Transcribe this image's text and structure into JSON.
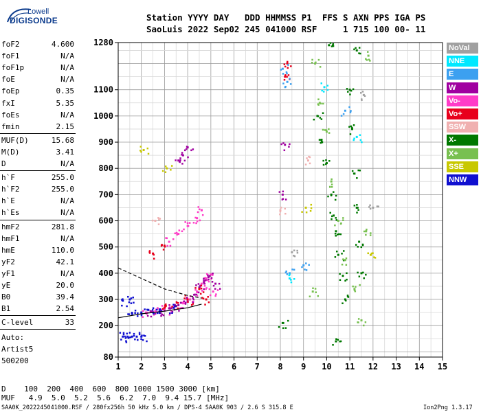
{
  "logo": {
    "line1": "Lowell",
    "line2": "DIGISONDE"
  },
  "header": {
    "row1": "Station YYYY DAY   DDD HHMMSS P1  FFS S AXN PPS IGA PS",
    "row2": "SaoLuis 2022 Sep02 245 041000 RSF     1 715 100 00- 11"
  },
  "params": [
    {
      "label": "foF2",
      "value": "4.600"
    },
    {
      "label": "foF1",
      "value": "N/A"
    },
    {
      "label": "foF1p",
      "value": "N/A"
    },
    {
      "label": "foE",
      "value": "N/A"
    },
    {
      "label": "foEp",
      "value": "0.35"
    },
    {
      "label": "fxI",
      "value": "5.35"
    },
    {
      "label": "foEs",
      "value": "N/A"
    },
    {
      "label": "fmin",
      "value": "2.15"
    },
    {
      "label": "MUF(D)",
      "value": "15.68"
    },
    {
      "label": "M(D)",
      "value": "3.41"
    },
    {
      "label": "D",
      "value": "N/A"
    },
    {
      "label": "h`F",
      "value": "255.0"
    },
    {
      "label": "h`F2",
      "value": "255.0"
    },
    {
      "label": "h`E",
      "value": "N/A"
    },
    {
      "label": "h`Es",
      "value": "N/A"
    },
    {
      "label": "hmF2",
      "value": "281.8"
    },
    {
      "label": "hmF1",
      "value": "N/A"
    },
    {
      "label": "hmE",
      "value": "110.0"
    },
    {
      "label": "yF2",
      "value": "42.1"
    },
    {
      "label": "yF1",
      "value": "N/A"
    },
    {
      "label": "yE",
      "value": "20.0"
    },
    {
      "label": "B0",
      "value": "39.4"
    },
    {
      "label": "B1",
      "value": "2.54"
    },
    {
      "label": "C-level",
      "value": "33"
    }
  ],
  "auto": {
    "line1": "Auto:",
    "line2": "Artist5",
    "line3": "500200"
  },
  "legend": [
    {
      "label": "NoVal",
      "color": "#a0a0a0"
    },
    {
      "label": "NNE",
      "color": "#00e8ff"
    },
    {
      "label": "E",
      "color": "#3ca0f0"
    },
    {
      "label": "W",
      "color": "#a000a0"
    },
    {
      "label": "Vo-",
      "color": "#ff3cc8"
    },
    {
      "label": "Vo+",
      "color": "#e8001c"
    },
    {
      "label": "SSW",
      "color": "#f0b0b0"
    },
    {
      "label": "X-",
      "color": "#007800"
    },
    {
      "label": "X+",
      "color": "#78c050"
    },
    {
      "label": "SSE",
      "color": "#c8c800"
    },
    {
      "label": "NNW",
      "color": "#1010d0"
    }
  ],
  "bottom": {
    "row1": "D    100  200  400  600  800 1000 1500 3000 [km]",
    "row2": "MUF   4.9  5.0  5.2  5.6  6.2  7.0  9.4 15.7 [MHz]"
  },
  "footer": {
    "file": "SAA0K_2022245041000.RSF / 280fx256h 50 kHz 5.0 km / DPS-4 SAA0K 903 / 2.6 S 315.8 E",
    "version": "Ion2Png 1.3.17"
  },
  "chart_data": {
    "type": "scatter",
    "title": "",
    "xlabel": "",
    "ylabel": "",
    "xlim": [
      1,
      15
    ],
    "ylim": [
      80,
      1280
    ],
    "x_ticks": [
      1,
      2,
      3,
      4,
      5,
      6,
      7,
      8,
      9,
      10,
      11,
      12,
      13,
      14,
      15
    ],
    "y_ticks": [
      80,
      200,
      300,
      400,
      500,
      600,
      700,
      800,
      900,
      1000,
      1100,
      1280
    ],
    "grid": true,
    "legend_placement": "right",
    "profile_curve": [
      [
        1.0,
        230
      ],
      [
        2.0,
        245
      ],
      [
        3.0,
        255
      ],
      [
        4.0,
        268
      ],
      [
        4.6,
        282
      ]
    ],
    "extrapolated_curve": [
      [
        1.0,
        420
      ],
      [
        2.0,
        380
      ],
      [
        3.0,
        340
      ],
      [
        4.0,
        315
      ],
      [
        4.6,
        305
      ]
    ],
    "series": [
      {
        "name": "Vo-",
        "points": [
          [
            2.2,
            250
          ],
          [
            2.6,
            255
          ],
          [
            3.0,
            262
          ],
          [
            3.4,
            270
          ],
          [
            3.8,
            285
          ],
          [
            4.1,
            300
          ],
          [
            4.4,
            330
          ],
          [
            4.6,
            360
          ],
          [
            4.8,
            380
          ],
          [
            5.0,
            395
          ],
          [
            5.1,
            330
          ],
          [
            3.2,
            520
          ],
          [
            3.6,
            550
          ],
          [
            4.0,
            580
          ],
          [
            4.4,
            610
          ],
          [
            4.6,
            640
          ]
        ]
      },
      {
        "name": "W",
        "points": [
          [
            2.4,
            255
          ],
          [
            2.8,
            258
          ],
          [
            3.2,
            266
          ],
          [
            3.6,
            278
          ],
          [
            4.0,
            292
          ],
          [
            4.3,
            318
          ],
          [
            4.5,
            345
          ],
          [
            4.7,
            365
          ],
          [
            4.9,
            385
          ],
          [
            5.2,
            360
          ],
          [
            3.8,
            850
          ],
          [
            4.0,
            880
          ],
          [
            3.6,
            830
          ],
          [
            8.1,
            700
          ],
          [
            8.2,
            890
          ]
        ]
      },
      {
        "name": "Vo+",
        "points": [
          [
            3.0,
            268
          ],
          [
            3.5,
            275
          ],
          [
            4.0,
            300
          ],
          [
            4.5,
            340
          ],
          [
            4.8,
            300
          ],
          [
            2.5,
            475
          ],
          [
            3.0,
            505
          ],
          [
            8.2,
            1150
          ],
          [
            8.3,
            1200
          ]
        ]
      },
      {
        "name": "NNW",
        "points": [
          [
            1.6,
            245
          ],
          [
            2.0,
            250
          ],
          [
            2.3,
            260
          ],
          [
            2.8,
            262
          ],
          [
            3.4,
            268
          ],
          [
            1.2,
            158
          ],
          [
            1.4,
            158
          ],
          [
            1.6,
            158
          ],
          [
            1.8,
            158
          ],
          [
            2.0,
            158
          ],
          [
            1.2,
            295
          ],
          [
            1.5,
            300
          ]
        ]
      },
      {
        "name": "X-",
        "points": [
          [
            9.6,
            1000
          ],
          [
            9.8,
            900
          ],
          [
            10.0,
            820
          ],
          [
            10.2,
            700
          ],
          [
            10.3,
            620
          ],
          [
            10.4,
            560
          ],
          [
            10.5,
            470
          ],
          [
            10.7,
            390
          ],
          [
            10.8,
            300
          ],
          [
            11.0,
            1100
          ],
          [
            11.1,
            950
          ],
          [
            11.2,
            780
          ],
          [
            11.3,
            650
          ],
          [
            11.4,
            520
          ],
          [
            11.5,
            400
          ],
          [
            11.3,
            1250
          ],
          [
            10.1,
            1270
          ],
          [
            10.4,
            140
          ],
          [
            8.1,
            210
          ]
        ]
      },
      {
        "name": "X+",
        "points": [
          [
            9.5,
            1200
          ],
          [
            9.7,
            1050
          ],
          [
            10.0,
            940
          ],
          [
            10.2,
            750
          ],
          [
            10.5,
            600
          ],
          [
            10.8,
            450
          ],
          [
            11.2,
            340
          ],
          [
            11.5,
            220
          ],
          [
            9.4,
            330
          ],
          [
            11.7,
            560
          ],
          [
            11.8,
            1230
          ]
        ]
      },
      {
        "name": "E",
        "points": [
          [
            8.1,
            1180
          ],
          [
            8.3,
            1130
          ],
          [
            8.4,
            400
          ],
          [
            9.0,
            430
          ],
          [
            10.8,
            1020
          ]
        ]
      },
      {
        "name": "NNE",
        "points": [
          [
            9.9,
            1110
          ],
          [
            11.3,
            920
          ],
          [
            8.4,
            380
          ]
        ]
      },
      {
        "name": "SSE",
        "points": [
          [
            2.1,
            870
          ],
          [
            3.1,
            800
          ],
          [
            9.1,
            650
          ],
          [
            11.9,
            470
          ]
        ]
      },
      {
        "name": "SSW",
        "points": [
          [
            2.6,
            600
          ],
          [
            8.0,
            640
          ],
          [
            9.2,
            830
          ]
        ]
      },
      {
        "name": "NoVal",
        "points": [
          [
            12.0,
            650
          ],
          [
            11.6,
            1080
          ],
          [
            8.5,
            480
          ]
        ]
      }
    ]
  }
}
